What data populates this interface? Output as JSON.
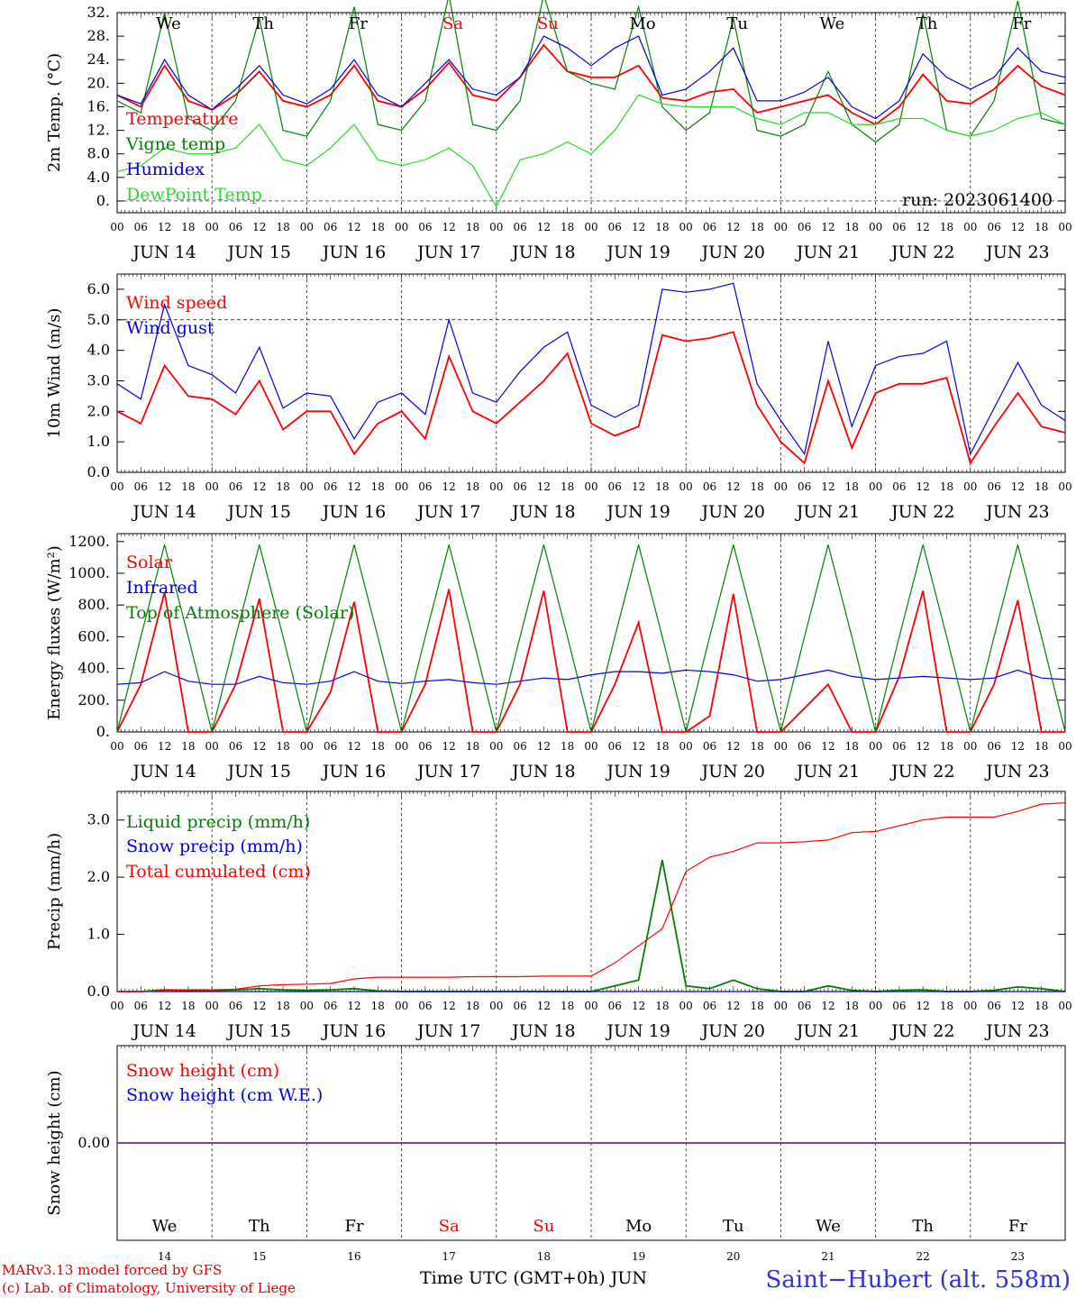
{
  "station": "Saint−Hubert (alt. 558m)",
  "footer": {
    "line1": "MARv3.13 model forced by GFS",
    "line2": "(c) Lab. of Climatology, University of Liege"
  },
  "run_label": "run: 2023061400",
  "time_axis_title": "Time UTC (GMT+0h) JUN",
  "colors": {
    "red": "#ff0000",
    "blue": "#0000dd",
    "darkgreen": "#008000",
    "lightgreen": "#22dd22",
    "purple": "#7030a0"
  },
  "days": {
    "weekday_labels": [
      "We",
      "Th",
      "Fr",
      "Sa",
      "Su",
      "Mo",
      "Tu",
      "We",
      "Th",
      "Fr"
    ],
    "weekday_colors": [
      "#000000",
      "#000000",
      "#000000",
      "#ff0000",
      "#ff0000",
      "#000000",
      "#000000",
      "#000000",
      "#000000",
      "#000000"
    ],
    "date_labels": [
      "JUN 14",
      "JUN 15",
      "JUN 16",
      "JUN 17",
      "JUN 18",
      "JUN 19",
      "JUN 20",
      "JUN 21",
      "JUN 22",
      "JUN 23"
    ],
    "day_numbers": [
      "14",
      "15",
      "16",
      "17",
      "18",
      "19",
      "20",
      "21",
      "22",
      "23"
    ],
    "hour_labels": [
      "00",
      "06",
      "12",
      "18"
    ],
    "final_hour_label": "00"
  },
  "chart_data": [
    {
      "type": "line",
      "ylabel": "2m Temp. (°C)",
      "ylim": [
        -2,
        32
      ],
      "yticks": [
        "0.",
        "4.0",
        "8.0",
        "12.",
        "16.",
        "20.",
        "24.",
        "28.",
        "32."
      ],
      "x_unit": "hours from JUN 14 00 UTC",
      "x": [
        0,
        6,
        12,
        18,
        24,
        30,
        36,
        42,
        48,
        54,
        60,
        66,
        72,
        78,
        84,
        90,
        96,
        102,
        108,
        114,
        120,
        126,
        132,
        138,
        144,
        150,
        156,
        162,
        168,
        174,
        180,
        186,
        192,
        198,
        204,
        210,
        216,
        222,
        228,
        234,
        240
      ],
      "series": [
        {
          "name": "Temperature",
          "color": "#ff0000",
          "values": [
            18,
            16,
            23,
            17,
            15.5,
            18,
            22,
            17,
            16,
            18,
            23,
            17,
            16,
            19,
            23.5,
            18,
            17,
            21,
            26.5,
            22,
            21,
            21,
            23,
            17.5,
            17,
            18.5,
            19,
            15,
            16,
            17,
            18,
            15,
            13,
            16,
            21.5,
            17,
            16.5,
            19,
            23,
            19.5,
            18
          ]
        },
        {
          "name": "Vigne temp",
          "color": "#008000",
          "values": [
            17,
            15,
            32,
            14,
            12,
            17,
            31,
            12,
            11,
            17,
            33,
            13,
            12,
            17,
            35,
            13,
            12,
            17,
            35,
            22,
            20,
            19,
            33,
            16,
            12,
            15,
            31,
            12,
            11,
            13,
            22,
            13,
            10,
            13,
            32,
            12,
            11,
            17,
            34,
            14,
            13
          ]
        },
        {
          "name": "Humidex",
          "color": "#0000dd",
          "values": [
            18,
            16.5,
            24,
            18,
            15.5,
            19,
            23,
            18,
            16.5,
            19,
            24,
            18,
            16,
            20,
            24,
            19,
            18,
            21,
            28,
            26,
            23,
            26,
            28,
            18,
            19,
            22,
            26,
            17,
            17,
            18.5,
            21,
            16,
            14,
            17,
            25,
            21,
            19,
            21,
            26,
            22,
            21
          ]
        },
        {
          "name": "DewPoint Temp",
          "color": "#22dd22",
          "values": [
            5,
            6,
            9,
            8,
            8,
            9,
            13,
            7,
            6,
            9,
            13,
            7,
            6,
            7,
            9,
            6,
            -1,
            7,
            8,
            10,
            8,
            12,
            18,
            16.5,
            16,
            16,
            16,
            14,
            13,
            15,
            15,
            13,
            13,
            14,
            14,
            12,
            11,
            12,
            14,
            15,
            13
          ]
        }
      ]
    },
    {
      "type": "line",
      "ylabel": "10m Wind (m/s)",
      "ylim": [
        0,
        6.5
      ],
      "yticks": [
        "0.0",
        "1.0",
        "2.0",
        "3.0",
        "4.0",
        "5.0",
        "6.0"
      ],
      "x": [
        0,
        6,
        12,
        18,
        24,
        30,
        36,
        42,
        48,
        54,
        60,
        66,
        72,
        78,
        84,
        90,
        96,
        102,
        108,
        114,
        120,
        126,
        132,
        138,
        144,
        150,
        156,
        162,
        168,
        174,
        180,
        186,
        192,
        198,
        204,
        210,
        216,
        222,
        228,
        234,
        240
      ],
      "series": [
        {
          "name": "Wind speed",
          "color": "#ff0000",
          "values": [
            2,
            1.6,
            3.5,
            2.5,
            2.4,
            1.9,
            3,
            1.4,
            2,
            2,
            0.6,
            1.6,
            2,
            1.1,
            3.8,
            2,
            1.6,
            2.3,
            3,
            3.9,
            1.6,
            1.2,
            1.5,
            4.5,
            4.3,
            4.4,
            4.6,
            2.2,
            1,
            0.3,
            3,
            0.8,
            2.6,
            2.9,
            2.9,
            3.1,
            0.3,
            1.5,
            2.6,
            1.5,
            1.3
          ]
        },
        {
          "name": "Wind gust",
          "color": "#0000dd",
          "values": [
            2.9,
            2.4,
            5.5,
            3.5,
            3.2,
            2.6,
            4.1,
            2.1,
            2.6,
            2.5,
            1.1,
            2.3,
            2.6,
            1.9,
            5,
            2.6,
            2.3,
            3.3,
            4.1,
            4.6,
            2.2,
            1.8,
            2.2,
            6,
            5.9,
            6,
            6.2,
            2.9,
            1.7,
            0.6,
            4.3,
            1.5,
            3.5,
            3.8,
            3.9,
            4.3,
            0.6,
            2.1,
            3.6,
            2.2,
            1.7
          ]
        }
      ]
    },
    {
      "type": "line",
      "ylabel": "Energy fluxes (W/m²)",
      "ylim": [
        0,
        1250
      ],
      "yticks": [
        "0.",
        "200.",
        "400.",
        "600.",
        "800.",
        "1000.",
        "1200."
      ],
      "x": [
        0,
        6,
        12,
        18,
        24,
        30,
        36,
        42,
        48,
        54,
        60,
        66,
        72,
        78,
        84,
        90,
        96,
        102,
        108,
        114,
        120,
        126,
        132,
        138,
        144,
        150,
        156,
        162,
        168,
        174,
        180,
        186,
        192,
        198,
        204,
        210,
        216,
        222,
        228,
        234,
        240
      ],
      "series": [
        {
          "name": "Solar",
          "color": "#ff0000",
          "values": [
            0,
            300,
            880,
            0,
            0,
            300,
            840,
            0,
            0,
            250,
            820,
            0,
            0,
            300,
            900,
            0,
            0,
            300,
            890,
            0,
            0,
            300,
            690,
            0,
            0,
            100,
            870,
            0,
            0,
            150,
            300,
            0,
            0,
            350,
            890,
            0,
            0,
            300,
            830,
            0,
            0
          ]
        },
        {
          "name": "Infrared",
          "color": "#0000dd",
          "values": [
            300,
            310,
            380,
            320,
            300,
            300,
            350,
            310,
            300,
            320,
            380,
            320,
            305,
            320,
            330,
            310,
            300,
            320,
            340,
            330,
            360,
            380,
            380,
            370,
            390,
            380,
            360,
            320,
            330,
            360,
            390,
            350,
            330,
            340,
            350,
            340,
            330,
            340,
            390,
            340,
            330
          ]
        },
        {
          "name": "Top of Atmosphere (Solar)",
          "color": "#008000",
          "values": [
            0,
            600,
            1180,
            600,
            0,
            600,
            1180,
            600,
            0,
            600,
            1180,
            600,
            0,
            600,
            1180,
            600,
            0,
            600,
            1180,
            600,
            0,
            600,
            1180,
            600,
            0,
            600,
            1180,
            600,
            0,
            600,
            1180,
            600,
            0,
            600,
            1180,
            600,
            0,
            600,
            1180,
            600,
            0
          ]
        }
      ]
    },
    {
      "type": "line",
      "ylabel": "Precip (mm/h)",
      "ylim": [
        0,
        3.5
      ],
      "yticks": [
        "0.0",
        "1.0",
        "2.0",
        "3.0"
      ],
      "x": [
        0,
        6,
        12,
        18,
        24,
        30,
        36,
        42,
        48,
        54,
        60,
        66,
        72,
        78,
        84,
        90,
        96,
        102,
        108,
        114,
        120,
        126,
        132,
        138,
        144,
        150,
        156,
        162,
        168,
        174,
        180,
        186,
        192,
        198,
        204,
        210,
        216,
        222,
        228,
        234,
        240
      ],
      "series": [
        {
          "name": "Liquid precip (mm/h)",
          "color": "#008000",
          "values": [
            0,
            0,
            0.03,
            0.02,
            0.02,
            0.03,
            0.05,
            0.03,
            0.02,
            0.03,
            0.05,
            0.01,
            0,
            0,
            0,
            0,
            0,
            0,
            0,
            0,
            0,
            0.1,
            0.2,
            2.3,
            0.1,
            0.05,
            0.2,
            0.05,
            0,
            0,
            0.1,
            0.02,
            0,
            0.02,
            0.03,
            0,
            0,
            0.02,
            0.08,
            0.05,
            0
          ]
        },
        {
          "name": "Snow precip (mm/h)",
          "color": "#0000dd",
          "values": [
            0,
            0,
            0,
            0,
            0,
            0,
            0,
            0,
            0,
            0,
            0,
            0,
            0,
            0,
            0,
            0,
            0,
            0,
            0,
            0,
            0,
            0,
            0,
            0,
            0,
            0,
            0,
            0,
            0,
            0,
            0,
            0,
            0,
            0,
            0,
            0,
            0,
            0,
            0,
            0,
            0
          ]
        },
        {
          "name": "Total cumulated (cm)",
          "color": "#ff0000",
          "values": [
            0,
            0,
            0.02,
            0.03,
            0.03,
            0.04,
            0.1,
            0.12,
            0.13,
            0.14,
            0.22,
            0.25,
            0.25,
            0.25,
            0.25,
            0.26,
            0.26,
            0.26,
            0.27,
            0.27,
            0.27,
            0.5,
            0.8,
            1.1,
            2.1,
            2.35,
            2.45,
            2.6,
            2.6,
            2.62,
            2.65,
            2.78,
            2.8,
            2.9,
            3.0,
            3.05,
            3.05,
            3.05,
            3.15,
            3.28,
            3.3
          ]
        }
      ]
    },
    {
      "type": "line",
      "ylabel": "Snow height (cm)",
      "ylim": [
        -1,
        1
      ],
      "yticks": [
        "0.00"
      ],
      "x": [
        0,
        240
      ],
      "series": [
        {
          "name": "Snow height (cm)",
          "color": "#ff0000",
          "values": [
            0,
            0
          ]
        },
        {
          "name": "Snow height (cm W.E.)",
          "color": "#0000dd",
          "values": [
            0,
            0
          ]
        }
      ]
    }
  ]
}
